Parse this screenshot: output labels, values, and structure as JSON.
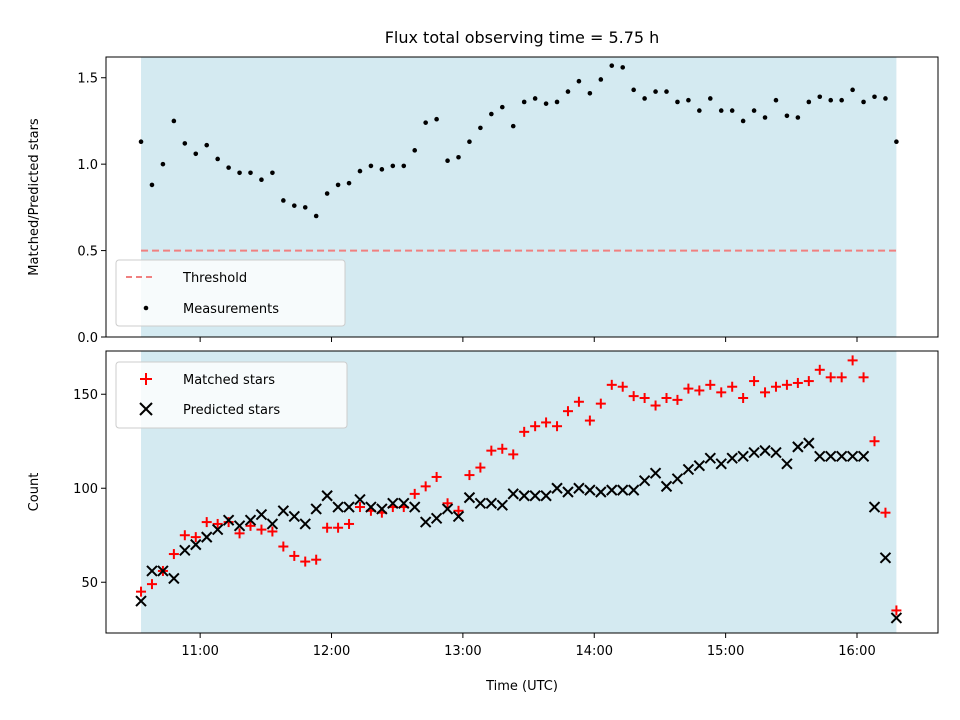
{
  "chart_data": [
    {
      "type": "scatter",
      "title": "Flux total observing time = 5.75 h",
      "xlabel": "",
      "ylabel": "Matched/Predicted stars",
      "xlim": [
        "10:17",
        "16:37"
      ],
      "ylim": [
        0.0,
        1.62
      ],
      "yticks": [
        0.0,
        0.5,
        1.0,
        1.5
      ],
      "ytick_labels": [
        "0.0",
        "0.5",
        "1.0",
        "1.5"
      ],
      "xticks": [
        "11:00",
        "12:00",
        "13:00",
        "14:00",
        "15:00",
        "16:00"
      ],
      "grid": false,
      "legend_position": "lower-left",
      "observing_window": [
        "10:33",
        "16:18"
      ],
      "observing_window_color": "#d4eaf1",
      "threshold": {
        "name": "Threshold",
        "value": 0.5,
        "color": "#f08080",
        "style": "dashed"
      },
      "series": [
        {
          "name": "Measurements",
          "marker": "dot",
          "color": "#000000",
          "points": [
            [
              "10:33",
              1.13
            ],
            [
              "10:38",
              0.88
            ],
            [
              "10:43",
              1.0
            ],
            [
              "10:48",
              1.25
            ],
            [
              "10:53",
              1.12
            ],
            [
              "10:58",
              1.06
            ],
            [
              "11:03",
              1.11
            ],
            [
              "11:08",
              1.03
            ],
            [
              "11:13",
              0.98
            ],
            [
              "11:18",
              0.95
            ],
            [
              "11:23",
              0.95
            ],
            [
              "11:28",
              0.91
            ],
            [
              "11:33",
              0.95
            ],
            [
              "11:38",
              0.79
            ],
            [
              "11:43",
              0.76
            ],
            [
              "11:48",
              0.75
            ],
            [
              "11:53",
              0.7
            ],
            [
              "11:58",
              0.83
            ],
            [
              "12:03",
              0.88
            ],
            [
              "12:08",
              0.89
            ],
            [
              "12:13",
              0.96
            ],
            [
              "12:18",
              0.99
            ],
            [
              "12:23",
              0.97
            ],
            [
              "12:28",
              0.99
            ],
            [
              "12:33",
              0.99
            ],
            [
              "12:38",
              1.08
            ],
            [
              "12:43",
              1.24
            ],
            [
              "12:48",
              1.26
            ],
            [
              "12:53",
              1.02
            ],
            [
              "12:58",
              1.04
            ],
            [
              "13:03",
              1.13
            ],
            [
              "13:08",
              1.21
            ],
            [
              "13:13",
              1.29
            ],
            [
              "13:18",
              1.33
            ],
            [
              "13:23",
              1.22
            ],
            [
              "13:28",
              1.36
            ],
            [
              "13:33",
              1.38
            ],
            [
              "13:38",
              1.35
            ],
            [
              "13:43",
              1.36
            ],
            [
              "13:48",
              1.42
            ],
            [
              "13:53",
              1.48
            ],
            [
              "13:58",
              1.41
            ],
            [
              "14:03",
              1.49
            ],
            [
              "14:08",
              1.57
            ],
            [
              "14:13",
              1.56
            ],
            [
              "14:18",
              1.43
            ],
            [
              "14:23",
              1.38
            ],
            [
              "14:28",
              1.42
            ],
            [
              "14:33",
              1.42
            ],
            [
              "14:38",
              1.36
            ],
            [
              "14:43",
              1.37
            ],
            [
              "14:48",
              1.31
            ],
            [
              "14:53",
              1.38
            ],
            [
              "14:58",
              1.31
            ],
            [
              "15:03",
              1.31
            ],
            [
              "15:08",
              1.25
            ],
            [
              "15:13",
              1.31
            ],
            [
              "15:18",
              1.27
            ],
            [
              "15:23",
              1.37
            ],
            [
              "15:28",
              1.28
            ],
            [
              "15:33",
              1.27
            ],
            [
              "15:38",
              1.36
            ],
            [
              "15:43",
              1.39
            ],
            [
              "15:48",
              1.37
            ],
            [
              "15:53",
              1.37
            ],
            [
              "15:58",
              1.43
            ],
            [
              "16:03",
              1.36
            ],
            [
              "16:08",
              1.39
            ],
            [
              "16:13",
              1.38
            ],
            [
              "16:18",
              1.13
            ]
          ]
        }
      ]
    },
    {
      "type": "scatter",
      "title": "",
      "xlabel": "Time (UTC)",
      "ylabel": "Count",
      "xlim": [
        "10:17",
        "16:37"
      ],
      "ylim": [
        23,
        173
      ],
      "yticks": [
        50,
        100,
        150
      ],
      "ytick_labels": [
        "50",
        "100",
        "150"
      ],
      "xticks": [
        "11:00",
        "12:00",
        "13:00",
        "14:00",
        "15:00",
        "16:00"
      ],
      "grid": false,
      "legend_position": "upper-left",
      "observing_window": [
        "10:33",
        "16:18"
      ],
      "observing_window_color": "#d4eaf1",
      "series": [
        {
          "name": "Matched stars",
          "marker": "plus",
          "color": "#ff0000",
          "points": [
            [
              "10:33",
              45
            ],
            [
              "10:38",
              49
            ],
            [
              "10:43",
              56
            ],
            [
              "10:48",
              65
            ],
            [
              "10:53",
              75
            ],
            [
              "10:58",
              74
            ],
            [
              "11:03",
              82
            ],
            [
              "11:08",
              81
            ],
            [
              "11:13",
              82
            ],
            [
              "11:18",
              76
            ],
            [
              "11:23",
              80
            ],
            [
              "11:28",
              78
            ],
            [
              "11:33",
              77
            ],
            [
              "11:38",
              69
            ],
            [
              "11:43",
              64
            ],
            [
              "11:48",
              61
            ],
            [
              "11:53",
              62
            ],
            [
              "11:58",
              79
            ],
            [
              "12:03",
              79
            ],
            [
              "12:08",
              81
            ],
            [
              "12:13",
              90
            ],
            [
              "12:18",
              88
            ],
            [
              "12:23",
              87
            ],
            [
              "12:28",
              90
            ],
            [
              "12:33",
              90
            ],
            [
              "12:38",
              97
            ],
            [
              "12:43",
              101
            ],
            [
              "12:48",
              106
            ],
            [
              "12:53",
              92
            ],
            [
              "12:58",
              88
            ],
            [
              "13:03",
              107
            ],
            [
              "13:08",
              111
            ],
            [
              "13:13",
              120
            ],
            [
              "13:18",
              121
            ],
            [
              "13:23",
              118
            ],
            [
              "13:28",
              130
            ],
            [
              "13:33",
              133
            ],
            [
              "13:38",
              135
            ],
            [
              "13:43",
              133
            ],
            [
              "13:48",
              141
            ],
            [
              "13:53",
              146
            ],
            [
              "13:58",
              136
            ],
            [
              "14:03",
              145
            ],
            [
              "14:08",
              155
            ],
            [
              "14:13",
              154
            ],
            [
              "14:18",
              149
            ],
            [
              "14:23",
              148
            ],
            [
              "14:28",
              144
            ],
            [
              "14:33",
              148
            ],
            [
              "14:38",
              147
            ],
            [
              "14:43",
              153
            ],
            [
              "14:48",
              152
            ],
            [
              "14:53",
              155
            ],
            [
              "14:58",
              151
            ],
            [
              "15:03",
              154
            ],
            [
              "15:08",
              148
            ],
            [
              "15:13",
              157
            ],
            [
              "15:18",
              151
            ],
            [
              "15:23",
              154
            ],
            [
              "15:28",
              155
            ],
            [
              "15:33",
              156
            ],
            [
              "15:38",
              157
            ],
            [
              "15:43",
              163
            ],
            [
              "15:48",
              159
            ],
            [
              "15:53",
              159
            ],
            [
              "15:58",
              168
            ],
            [
              "16:03",
              159
            ],
            [
              "16:08",
              125
            ],
            [
              "16:13",
              87
            ],
            [
              "16:18",
              35
            ]
          ]
        },
        {
          "name": "Predicted stars",
          "marker": "x",
          "color": "#000000",
          "points": [
            [
              "10:33",
              40
            ],
            [
              "10:38",
              56
            ],
            [
              "10:43",
              56
            ],
            [
              "10:48",
              52
            ],
            [
              "10:53",
              67
            ],
            [
              "10:58",
              70
            ],
            [
              "11:03",
              74
            ],
            [
              "11:08",
              78
            ],
            [
              "11:13",
              83
            ],
            [
              "11:18",
              80
            ],
            [
              "11:23",
              83
            ],
            [
              "11:28",
              86
            ],
            [
              "11:33",
              81
            ],
            [
              "11:38",
              88
            ],
            [
              "11:43",
              85
            ],
            [
              "11:48",
              81
            ],
            [
              "11:53",
              89
            ],
            [
              "11:58",
              96
            ],
            [
              "12:03",
              90
            ],
            [
              "12:08",
              90
            ],
            [
              "12:13",
              94
            ],
            [
              "12:18",
              90
            ],
            [
              "12:23",
              89
            ],
            [
              "12:28",
              92
            ],
            [
              "12:33",
              92
            ],
            [
              "12:38",
              90
            ],
            [
              "12:43",
              82
            ],
            [
              "12:48",
              84
            ],
            [
              "12:53",
              89
            ],
            [
              "12:58",
              85
            ],
            [
              "13:03",
              95
            ],
            [
              "13:08",
              92
            ],
            [
              "13:13",
              92
            ],
            [
              "13:18",
              91
            ],
            [
              "13:23",
              97
            ],
            [
              "13:28",
              96
            ],
            [
              "13:33",
              96
            ],
            [
              "13:38",
              96
            ],
            [
              "13:43",
              100
            ],
            [
              "13:48",
              98
            ],
            [
              "13:53",
              100
            ],
            [
              "13:58",
              99
            ],
            [
              "14:03",
              98
            ],
            [
              "14:08",
              99
            ],
            [
              "14:13",
              99
            ],
            [
              "14:18",
              99
            ],
            [
              "14:23",
              104
            ],
            [
              "14:28",
              108
            ],
            [
              "14:33",
              101
            ],
            [
              "14:38",
              105
            ],
            [
              "14:43",
              110
            ],
            [
              "14:48",
              112
            ],
            [
              "14:53",
              116
            ],
            [
              "14:58",
              113
            ],
            [
              "15:03",
              116
            ],
            [
              "15:08",
              117
            ],
            [
              "15:13",
              119
            ],
            [
              "15:18",
              120
            ],
            [
              "15:23",
              119
            ],
            [
              "15:28",
              113
            ],
            [
              "15:33",
              122
            ],
            [
              "15:38",
              124
            ],
            [
              "15:43",
              117
            ],
            [
              "15:48",
              117
            ],
            [
              "15:53",
              117
            ],
            [
              "15:58",
              117
            ],
            [
              "16:03",
              117
            ],
            [
              "16:08",
              90
            ],
            [
              "16:13",
              63
            ],
            [
              "16:18",
              31
            ]
          ]
        }
      ]
    }
  ]
}
